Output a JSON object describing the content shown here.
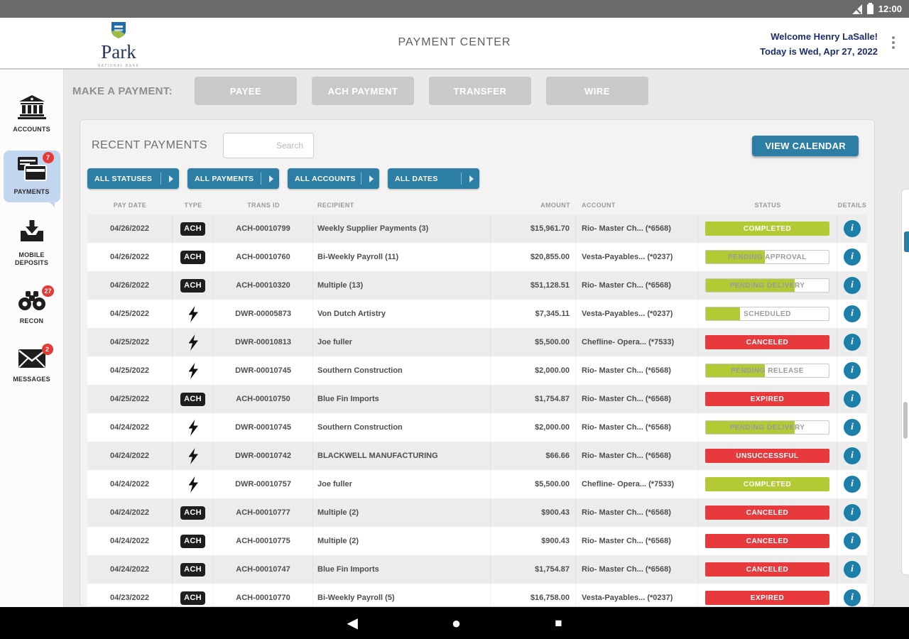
{
  "status_bar": {
    "time": "12:00"
  },
  "header": {
    "logo_name": "Park",
    "logo_subtitle": "NATIONAL BANK",
    "title": "PAYMENT CENTER",
    "welcome_line1": "Welcome Henry LaSalle!",
    "welcome_line2": "Today is Wed, Apr 27, 2022"
  },
  "sidebar": {
    "items": [
      {
        "label": "ACCOUNTS",
        "icon": "bank-icon",
        "badge": "",
        "active": false
      },
      {
        "label": "PAYMENTS",
        "icon": "payment-cards-icon",
        "badge": "7",
        "active": true
      },
      {
        "label": "MOBILE DEPOSITS",
        "icon": "mobile-deposit-icon",
        "badge": "",
        "active": false
      },
      {
        "label": "RECON",
        "icon": "binoculars-icon",
        "badge": "27",
        "active": false
      },
      {
        "label": "MESSAGES",
        "icon": "envelope-icon",
        "badge": "2",
        "active": false
      }
    ]
  },
  "make_payment": {
    "label": "MAKE A PAYMENT:",
    "buttons": [
      "PAYEE",
      "ACH PAYMENT",
      "TRANSFER",
      "WIRE"
    ]
  },
  "recent_payments": {
    "title": "RECENT PAYMENTS",
    "search_placeholder": "Search",
    "view_calendar_label": "VIEW CALENDAR",
    "filters": [
      "ALL STATUSES",
      "ALL PAYMENTS",
      "ALL ACCOUNTS",
      "ALL DATES"
    ]
  },
  "table": {
    "columns": [
      "PAY DATE",
      "TYPE",
      "TRANS ID",
      "RECIPIENT",
      "AMOUNT",
      "ACCOUNT",
      "STATUS",
      "DETAILS"
    ],
    "rows": [
      {
        "pay_date": "04/26/2022",
        "type": "ACH",
        "trans_id": "ACH-00010799",
        "recipient": "Weekly Supplier Payments (3)",
        "amount": "$15,961.70",
        "account": "Rio- Master Ch... (*6568)",
        "status": {
          "label": "COMPLETED",
          "style": "green",
          "fill_pct": 100
        }
      },
      {
        "pay_date": "04/26/2022",
        "type": "ACH",
        "trans_id": "ACH-00010760",
        "recipient": "Bi-Weekly Payroll (11)",
        "amount": "$20,855.00",
        "account": "Vesta-Payables... (*0237)",
        "status": {
          "label": "PENDING APPROVAL",
          "style": "progress",
          "fill_pct": 48
        }
      },
      {
        "pay_date": "04/26/2022",
        "type": "ACH",
        "trans_id": "ACH-00010320",
        "recipient": "Multiple (13)",
        "amount": "$51,128.51",
        "account": "Rio- Master Ch... (*6568)",
        "status": {
          "label": "PENDING DELIVERY",
          "style": "progress",
          "fill_pct": 72
        }
      },
      {
        "pay_date": "04/25/2022",
        "type": "WIRE",
        "trans_id": "DWR-00005873",
        "recipient": "Von Dutch Artistry",
        "amount": "$7,345.11",
        "account": "Vesta-Payables... (*0237)",
        "status": {
          "label": "SCHEDULED",
          "style": "progress",
          "fill_pct": 28
        }
      },
      {
        "pay_date": "04/25/2022",
        "type": "WIRE",
        "trans_id": "DWR-00010813",
        "recipient": "Joe fuller",
        "amount": "$5,500.00",
        "account": "Chefline- Opera... (*7533)",
        "status": {
          "label": "CANCELED",
          "style": "red",
          "fill_pct": 100
        }
      },
      {
        "pay_date": "04/25/2022",
        "type": "WIRE",
        "trans_id": "DWR-00010745",
        "recipient": "Southern Construction",
        "amount": "$2,000.00",
        "account": "Rio- Master Ch... (*6568)",
        "status": {
          "label": "PENDING RELEASE",
          "style": "progress",
          "fill_pct": 48
        }
      },
      {
        "pay_date": "04/25/2022",
        "type": "ACH",
        "trans_id": "ACH-00010750",
        "recipient": "Blue Fin Imports",
        "amount": "$1,754.87",
        "account": "Rio- Master Ch... (*6568)",
        "status": {
          "label": "EXPIRED",
          "style": "red",
          "fill_pct": 100
        }
      },
      {
        "pay_date": "04/24/2022",
        "type": "WIRE",
        "trans_id": "DWR-00010745",
        "recipient": "Southern Construction",
        "amount": "$2,000.00",
        "account": "Rio- Master Ch... (*6568)",
        "status": {
          "label": "PENDING DELIVERY",
          "style": "progress",
          "fill_pct": 72
        }
      },
      {
        "pay_date": "04/24/2022",
        "type": "WIRE",
        "trans_id": "DWR-00010742",
        "recipient": "BLACKWELL MANUFACTURING",
        "amount": "$66.66",
        "account": "Rio- Master Ch... (*6568)",
        "status": {
          "label": "UNSUCCESSFUL",
          "style": "red",
          "fill_pct": 100
        }
      },
      {
        "pay_date": "04/24/2022",
        "type": "WIRE",
        "trans_id": "DWR-00010757",
        "recipient": "Joe fuller",
        "amount": "$5,500.00",
        "account": "Chefline- Opera... (*7533)",
        "status": {
          "label": "COMPLETED",
          "style": "green",
          "fill_pct": 100
        }
      },
      {
        "pay_date": "04/24/2022",
        "type": "ACH",
        "trans_id": "ACH-00010777",
        "recipient": "Multiple (2)",
        "amount": "$900.43",
        "account": "Rio- Master Ch... (*6568)",
        "status": {
          "label": "CANCELED",
          "style": "red",
          "fill_pct": 100
        }
      },
      {
        "pay_date": "04/24/2022",
        "type": "ACH",
        "trans_id": "ACH-00010775",
        "recipient": "Multiple (2)",
        "amount": "$900.43",
        "account": "Rio- Master Ch... (*6568)",
        "status": {
          "label": "CANCELED",
          "style": "red",
          "fill_pct": 100
        }
      },
      {
        "pay_date": "04/24/2022",
        "type": "ACH",
        "trans_id": "ACH-00010747",
        "recipient": "Blue Fin Imports",
        "amount": "$1,754.87",
        "account": "Rio- Master Ch... (*6568)",
        "status": {
          "label": "CANCELED",
          "style": "red",
          "fill_pct": 100
        }
      },
      {
        "pay_date": "04/23/2022",
        "type": "ACH",
        "trans_id": "ACH-00010770",
        "recipient": "Bi-Weekly Payroll (5)",
        "amount": "$16,758.00",
        "account": "Vesta-Payables... (*0237)",
        "status": {
          "label": "EXPIRED",
          "style": "red",
          "fill_pct": 100
        }
      }
    ]
  },
  "colors": {
    "accent_blue": "#2d7ea4",
    "status_green": "#b3ca35",
    "status_red": "#e8393c",
    "badge_red": "#e53935",
    "active_item_blue": "#c3d6f0",
    "info_blue": "#1d7ea9"
  },
  "nav_bar": {
    "icons": [
      "back-icon",
      "home-icon",
      "recents-icon"
    ]
  }
}
